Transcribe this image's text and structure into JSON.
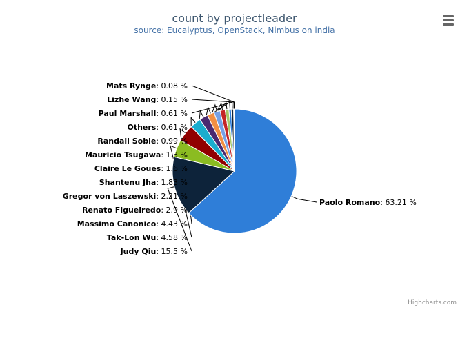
{
  "chart_data": {
    "type": "pie",
    "title": "count by projectleader",
    "subtitle": "source: Eucalyptus, OpenStack, Nimbus on india",
    "slices": [
      {
        "name": "Paolo Romano",
        "value": 63.21,
        "label": "63.21 %",
        "color": "#2f7ed8"
      },
      {
        "name": "Judy Qiu",
        "value": 15.5,
        "label": "15.5 %",
        "color": "#0d233a"
      },
      {
        "name": "Tak-Lon Wu",
        "value": 4.58,
        "label": "4.58 %",
        "color": "#8bbc21"
      },
      {
        "name": "Massimo Canonico",
        "value": 4.43,
        "label": "4.43 %",
        "color": "#910000"
      },
      {
        "name": "Renato Figueiredo",
        "value": 2.9,
        "label": "2.9 %",
        "color": "#1aadce"
      },
      {
        "name": "Gregor von Laszewski",
        "value": 2.21,
        "label": "2.21 %",
        "color": "#492970"
      },
      {
        "name": "Shantenu Jha",
        "value": 1.83,
        "label": "1.83 %",
        "color": "#f28f43"
      },
      {
        "name": "Claire Le Goues",
        "value": 1.6,
        "label": "1.6 %",
        "color": "#77a1e5"
      },
      {
        "name": "Mauricio Tsugawa",
        "value": 1.3,
        "label": "1.3 %",
        "color": "#c42525"
      },
      {
        "name": "Randall Sobie",
        "value": 0.99,
        "label": "0.99 %",
        "color": "#a6c96a"
      },
      {
        "name": "Others",
        "value": 0.61,
        "label": "0.61 %",
        "color": "#2f7ed8"
      },
      {
        "name": "Paul Marshall",
        "value": 0.61,
        "label": "0.61 %",
        "color": "#0d233a"
      },
      {
        "name": "Lizhe Wang",
        "value": 0.15,
        "label": "0.15 %",
        "color": "#8bbc21"
      },
      {
        "name": "Mats Rynge",
        "value": 0.08,
        "label": "0.08 %",
        "color": "#910000"
      }
    ]
  },
  "menu": {
    "icon": "hamburger-menu-icon"
  },
  "credits": "Highcharts.com"
}
